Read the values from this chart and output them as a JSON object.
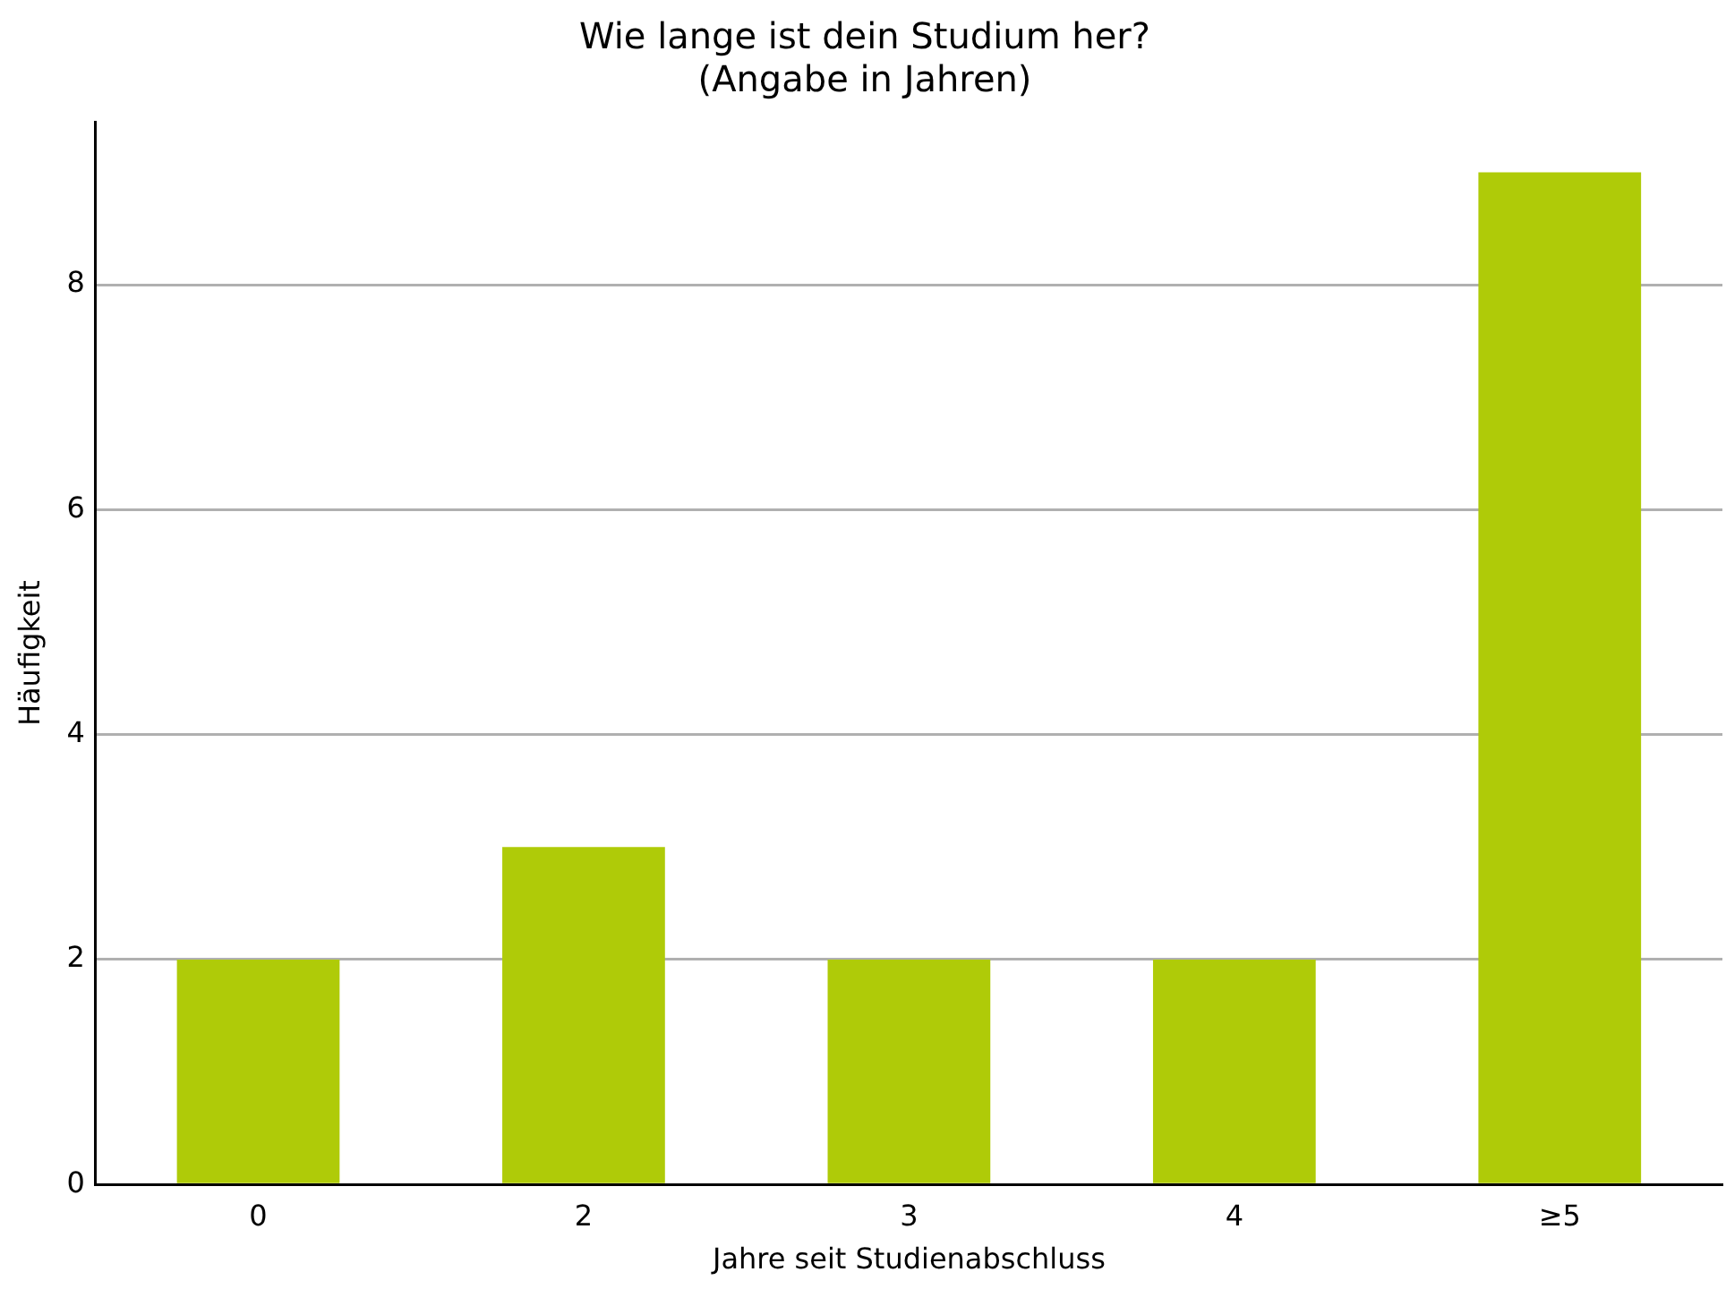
{
  "chart_data": {
    "type": "bar",
    "title": "Wie lange ist dein Studium her?\n(Angabe in Jahren)",
    "xlabel": "Jahre seit Studienabschluss",
    "ylabel": "Häufigkeit",
    "categories": [
      "0",
      "2",
      "3",
      "4",
      "≥5"
    ],
    "values": [
      2,
      3,
      2,
      2,
      9
    ],
    "color": "#afcb08",
    "ylim": [
      0,
      9.45
    ],
    "yticks": [
      0,
      2,
      4,
      6,
      8
    ],
    "grid": "y",
    "legend": false
  }
}
